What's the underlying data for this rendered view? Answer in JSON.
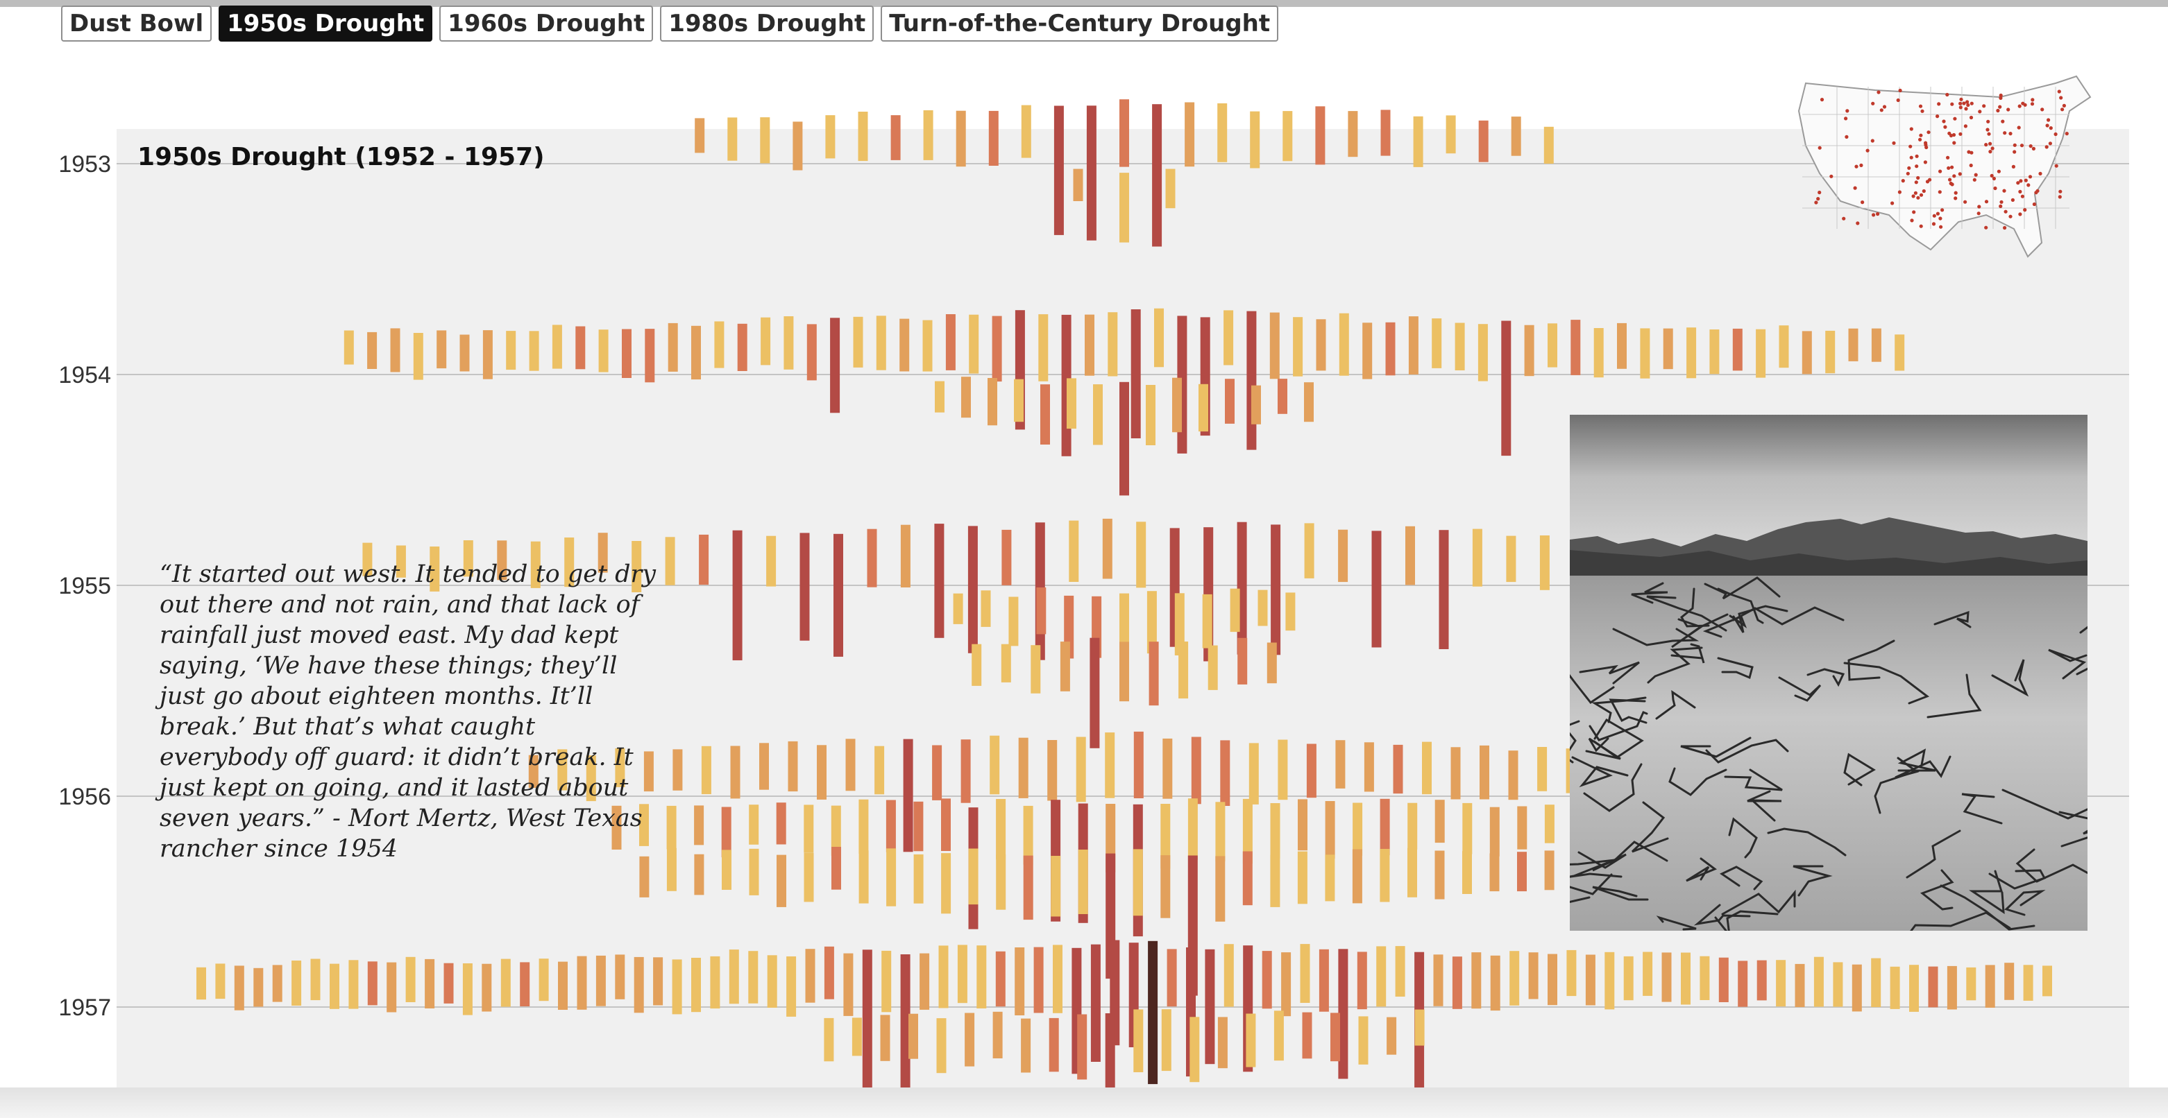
{
  "tabs": [
    {
      "label": "Dust Bowl",
      "active": false
    },
    {
      "label": "1950s Drought",
      "active": true
    },
    {
      "label": "1960s Drought",
      "active": false
    },
    {
      "label": "1980s Drought",
      "active": false
    },
    {
      "label": "Turn-of-the-Century Drought",
      "active": false
    }
  ],
  "panel": {
    "title": "1950s Drought (1952 - 1957)",
    "quote": "“It started out west. It tended to get dry out there and not rain, and that lack of rainfall just moved east. My dad kept saying, ‘We have these things; they’ll just go about eighteen months. It’ll break.’ But that’s what caught everybody off guard: it didn’t break. It just kept on going, and it lasted about seven years.” - Mort Mertz, West Texas rancher since 1954"
  },
  "colors": {
    "moderate": "#ecc064",
    "severe": "#e2a05c",
    "extreme": "#d97956",
    "very_extreme": "#b34a45",
    "exceptional": "#4d2620",
    "panel_bg": "#f0f0f0",
    "gridline": "#c4c4c4",
    "map_dot": "#c0392b"
  },
  "chart_data": {
    "type": "bar",
    "y_categories": [
      "1953",
      "1954",
      "1955",
      "1956",
      "1957"
    ],
    "series_note_levels": [
      "moderate",
      "severe",
      "extreme",
      "very_extreme",
      "exceptional"
    ],
    "rows": [
      {
        "year": "1953",
        "groups": [
          {
            "count": 27,
            "span": 0.46,
            "seed": 11
          },
          {
            "count": 3,
            "span": 0.05,
            "seed": 12
          }
        ]
      },
      {
        "year": "1954",
        "groups": [
          {
            "count": 68,
            "span": 0.84,
            "seed": 21
          },
          {
            "count": 15,
            "span": 0.2,
            "seed": 22
          }
        ]
      },
      {
        "year": "1955",
        "groups": [
          {
            "count": 46,
            "span": 0.82,
            "seed": 31
          },
          {
            "count": 13,
            "span": 0.18,
            "seed": 32
          },
          {
            "count": 11,
            "span": 0.16,
            "seed": 33
          }
        ]
      },
      {
        "year": "1956",
        "groups": [
          {
            "count": 42,
            "span": 0.64,
            "seed": 41
          },
          {
            "count": 38,
            "span": 0.55,
            "seed": 42
          },
          {
            "count": 36,
            "span": 0.52,
            "seed": 43
          }
        ]
      },
      {
        "year": "1957",
        "groups": [
          {
            "count": 98,
            "span": 1.0,
            "seed": 51
          },
          {
            "count": 22,
            "span": 0.32,
            "seed": 52
          }
        ]
      }
    ]
  }
}
